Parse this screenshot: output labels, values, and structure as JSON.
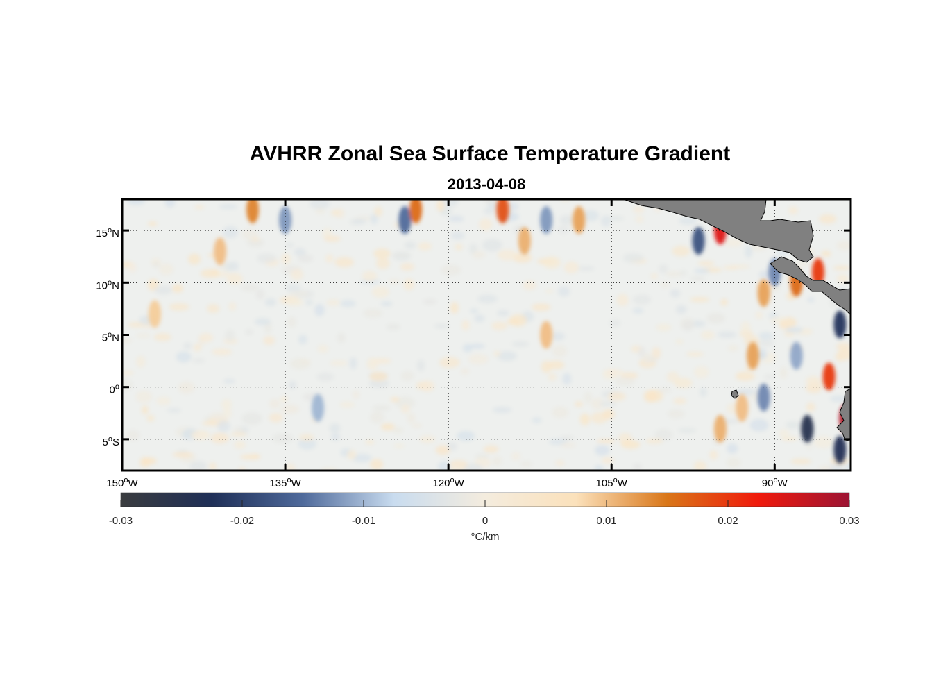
{
  "chart_data": {
    "type": "heatmap",
    "title": "AVHRR Zonal Sea Surface Temperature Gradient",
    "subtitle": "2013-04-08",
    "x_axis": {
      "range": [
        -150,
        -83
      ],
      "ticks": [
        {
          "value": -150,
          "deg": "150",
          "hemi": "W"
        },
        {
          "value": -135,
          "deg": "135",
          "hemi": "W"
        },
        {
          "value": -120,
          "deg": "120",
          "hemi": "W"
        },
        {
          "value": -105,
          "deg": "105",
          "hemi": "W"
        },
        {
          "value": -90,
          "deg": "90",
          "hemi": "W"
        }
      ]
    },
    "y_axis": {
      "range": [
        -8,
        18
      ],
      "ticks": [
        {
          "value": 15,
          "deg": "15",
          "hemi": "N"
        },
        {
          "value": 10,
          "deg": "10",
          "hemi": "N"
        },
        {
          "value": 5,
          "deg": "5",
          "hemi": "N"
        },
        {
          "value": 0,
          "deg": "0",
          "hemi": ""
        },
        {
          "value": -5,
          "deg": "5",
          "hemi": "S"
        }
      ]
    },
    "grid": true,
    "colorbar": {
      "min": -0.03,
      "max": 0.03,
      "ticks": [
        "-0.03",
        "-0.02",
        "-0.01",
        "0",
        "0.01",
        "0.02",
        "0.03"
      ],
      "tick_values": [
        -0.03,
        -0.02,
        -0.01,
        0,
        0.01,
        0.02,
        0.03
      ],
      "label": "°C/km",
      "colors": [
        "#3a3c3f",
        "#1f2f57",
        "#4f6a9b",
        "#c9dcef",
        "#f4ecde",
        "#fbe1bb",
        "#d97618",
        "#f01a0c",
        "#9c1434"
      ]
    },
    "land_color": "#808080",
    "features": [
      {
        "lon": -138,
        "lat": 17,
        "value": 0.014
      },
      {
        "lon": -135,
        "lat": 16,
        "value": -0.012
      },
      {
        "lon": -124,
        "lat": 16,
        "value": -0.015
      },
      {
        "lon": -123,
        "lat": 17,
        "value": 0.016
      },
      {
        "lon": -115,
        "lat": 17,
        "value": 0.018
      },
      {
        "lon": -113,
        "lat": 14,
        "value": 0.011
      },
      {
        "lon": -111,
        "lat": 16,
        "value": -0.012
      },
      {
        "lon": -108,
        "lat": 16,
        "value": 0.012
      },
      {
        "lon": -97,
        "lat": 14,
        "value": -0.018
      },
      {
        "lon": -95,
        "lat": 15,
        "value": 0.024
      },
      {
        "lon": -90,
        "lat": 11,
        "value": -0.013
      },
      {
        "lon": -88,
        "lat": 10,
        "value": 0.016
      },
      {
        "lon": -91,
        "lat": 9,
        "value": 0.012
      },
      {
        "lon": -86,
        "lat": 11,
        "value": 0.02
      },
      {
        "lon": -84,
        "lat": 6,
        "value": -0.022
      },
      {
        "lon": -85,
        "lat": 1,
        "value": 0.02
      },
      {
        "lon": -87,
        "lat": -4,
        "value": -0.025
      },
      {
        "lon": -84,
        "lat": -6,
        "value": -0.023
      },
      {
        "lon": -91,
        "lat": -1,
        "value": -0.013
      },
      {
        "lon": -92,
        "lat": 3,
        "value": 0.012
      },
      {
        "lon": -88,
        "lat": 3,
        "value": -0.011
      },
      {
        "lon": -83.5,
        "lat": -3,
        "value": 0.028
      },
      {
        "lon": -111,
        "lat": 5,
        "value": 0.01
      },
      {
        "lon": -132,
        "lat": -2,
        "value": -0.01
      },
      {
        "lon": -147,
        "lat": 7,
        "value": 0.009
      },
      {
        "lon": -141,
        "lat": 13,
        "value": 0.01
      },
      {
        "lon": -95,
        "lat": -4,
        "value": 0.011
      },
      {
        "lon": -93,
        "lat": -2,
        "value": 0.01
      }
    ],
    "land_labels": []
  }
}
